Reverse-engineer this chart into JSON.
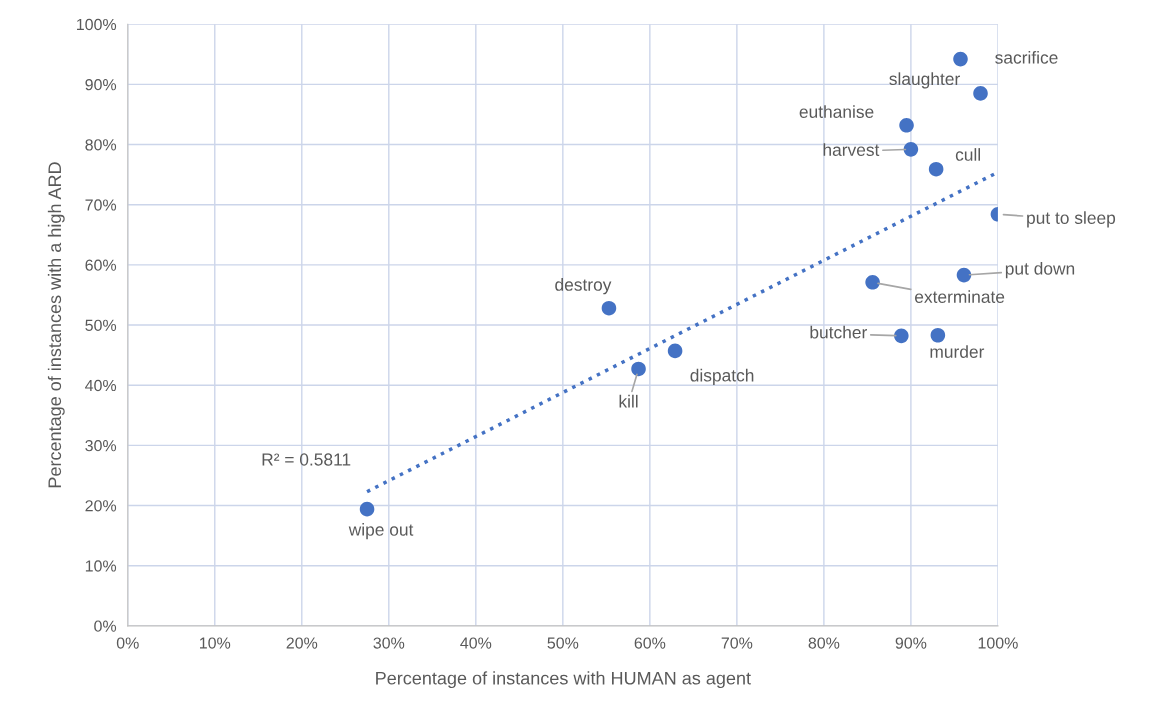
{
  "chart_data": {
    "type": "scatter",
    "xlabel": "Percentage of instances with HUMAN as agent",
    "ylabel": "Percentage of instances with a high ARD",
    "xlim": [
      0,
      100
    ],
    "ylim": [
      0,
      100
    ],
    "xticks": [
      {
        "value": 0,
        "label": "0%"
      },
      {
        "value": 10,
        "label": "10%"
      },
      {
        "value": 20,
        "label": "20%"
      },
      {
        "value": 30,
        "label": "30%"
      },
      {
        "value": 40,
        "label": "40%"
      },
      {
        "value": 50,
        "label": "50%"
      },
      {
        "value": 60,
        "label": "60%"
      },
      {
        "value": 70,
        "label": "70%"
      },
      {
        "value": 80,
        "label": "80%"
      },
      {
        "value": 90,
        "label": "90%"
      },
      {
        "value": 100,
        "label": "100%"
      }
    ],
    "yticks": [
      {
        "value": 0,
        "label": "0%"
      },
      {
        "value": 10,
        "label": "10%"
      },
      {
        "value": 20,
        "label": "20%"
      },
      {
        "value": 30,
        "label": "30%"
      },
      {
        "value": 40,
        "label": "40%"
      },
      {
        "value": 50,
        "label": "50%"
      },
      {
        "value": 60,
        "label": "60%"
      },
      {
        "value": 70,
        "label": "70%"
      },
      {
        "value": 80,
        "label": "80%"
      },
      {
        "value": 90,
        "label": "90%"
      },
      {
        "value": 100,
        "label": "100%"
      }
    ],
    "grid": true,
    "marker": "circle",
    "series": [
      {
        "color": "#4472c4",
        "x": [
          95.7,
          98.0,
          89.5,
          90.0,
          92.9,
          100,
          96.1,
          85.6,
          88.9,
          93.1,
          55.3,
          62.9,
          58.7,
          27.5
        ],
        "values": [
          94.2,
          88.5,
          83.2,
          79.2,
          75.9,
          68.4,
          58.3,
          57.1,
          48.2,
          48.3,
          52.8,
          45.7,
          42.7,
          19.4
        ]
      },
      {
        "type": "line",
        "color": "#4472c4",
        "line_style": "dotted",
        "marker": "none",
        "x": [
          27.5,
          100
        ],
        "values": [
          22.3,
          75.4
        ]
      }
    ],
    "annotations": [
      {
        "text": "sacrifice",
        "x": 95.7,
        "y": 94.2
      },
      {
        "text": "slaughter",
        "x": 98.0,
        "y": 88.5
      },
      {
        "text": "euthanise",
        "x": 89.5,
        "y": 83.2
      },
      {
        "text": "harvest",
        "x": 90.0,
        "y": 79.2
      },
      {
        "text": "cull",
        "x": 92.9,
        "y": 75.9
      },
      {
        "text": "put to sleep",
        "x": 100,
        "y": 68.4
      },
      {
        "text": "put down",
        "x": 96.1,
        "y": 58.3
      },
      {
        "text": "exterminate",
        "x": 85.6,
        "y": 57.1
      },
      {
        "text": "butcher",
        "x": 88.9,
        "y": 48.2
      },
      {
        "text": "murder",
        "x": 93.1,
        "y": 48.3
      },
      {
        "text": "destroy",
        "x": 55.3,
        "y": 52.8
      },
      {
        "text": "dispatch",
        "x": 62.9,
        "y": 45.7
      },
      {
        "text": "kill",
        "x": 58.7,
        "y": 42.7
      },
      {
        "text": "wipe out",
        "x": 27.5,
        "y": 19.4
      },
      "R² = 0.5811"
    ]
  }
}
